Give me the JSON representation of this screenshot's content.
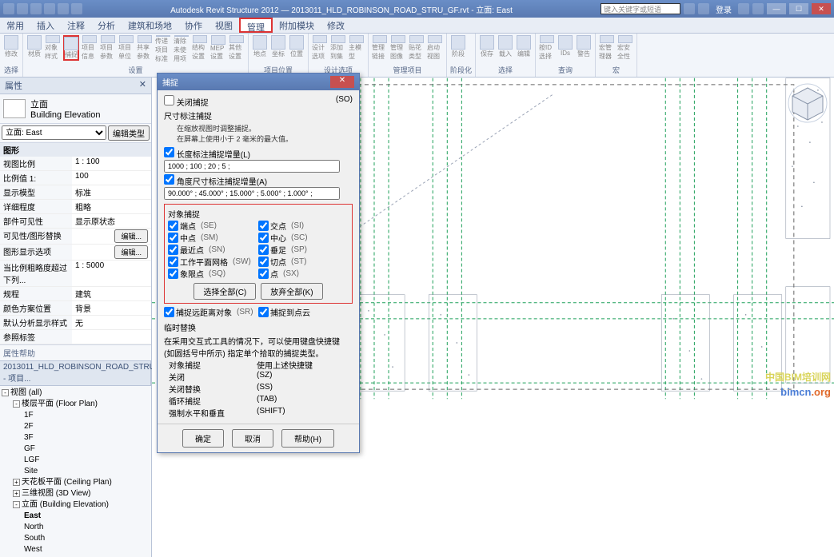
{
  "app": {
    "title": "Autodesk Revit Structure 2012 — 2013011_HLD_ROBINSON_ROAD_STRU_GF.rvt - 立面: East",
    "search_ph": "键入关键字或短语",
    "login": "登录"
  },
  "tabs": [
    "常用",
    "插入",
    "注释",
    "分析",
    "建筑和场地",
    "协作",
    "视图",
    "管理",
    "附加模块",
    "修改"
  ],
  "active_tab": "管理",
  "highlight_tab": "管理",
  "ribbon_groups": [
    {
      "label": "选择",
      "icons": [
        "修改"
      ]
    },
    {
      "label": "设置",
      "icons": [
        "材质",
        "对象样式",
        "捕捉",
        "项目信息",
        "项目参数",
        "项目单位",
        "共享参数",
        "传递项目标准",
        "清除未使用项",
        "结构设置",
        "MEP设置",
        "其他设置"
      ]
    },
    {
      "label": "项目位置",
      "icons": [
        "地点",
        "坐标",
        "位置"
      ]
    },
    {
      "label": "设计选项",
      "icons": [
        "设计选项",
        "添加到集",
        "主模型"
      ]
    },
    {
      "label": "管理项目",
      "icons": [
        "管理链接",
        "管理图像",
        "贴花类型",
        "启动视图"
      ]
    },
    {
      "label": "阶段化",
      "icons": [
        "阶段"
      ]
    },
    {
      "label": "选择",
      "icons": [
        "保存",
        "载入",
        "编辑"
      ]
    },
    {
      "label": "查询",
      "icons": [
        "按ID选择",
        "IDs",
        "警告"
      ]
    },
    {
      "label": "宏",
      "icons": [
        "宏管理器",
        "宏安全性"
      ]
    }
  ],
  "highlight_icon": "捕捉",
  "props": {
    "panel": "属性",
    "family": "立面",
    "type": "Building Elevation",
    "selector": "立面: East",
    "edit_type": "编辑类型",
    "sect": "图形",
    "rows": [
      {
        "k": "视图比例",
        "v": "1 : 100"
      },
      {
        "k": "比例值 1:",
        "v": "100"
      },
      {
        "k": "显示模型",
        "v": "标准"
      },
      {
        "k": "详细程度",
        "v": "粗略"
      },
      {
        "k": "部件可见性",
        "v": "显示原状态"
      },
      {
        "k": "可见性/图形替换",
        "v": "",
        "btn": "编辑..."
      },
      {
        "k": "图形显示选项",
        "v": "",
        "btn": "编辑..."
      },
      {
        "k": "当比例粗略度超过下列...",
        "v": "1 : 5000"
      },
      {
        "k": "规程",
        "v": "建筑"
      },
      {
        "k": "颜色方案位置",
        "v": "背景"
      },
      {
        "k": "默认分析显示样式",
        "v": "无"
      },
      {
        "k": "参照标签",
        "v": ""
      }
    ],
    "help": "属性帮助"
  },
  "browser": {
    "title": "2013011_HLD_ROBINSON_ROAD_STRU_GF.rvt - 项目...",
    "nodes": [
      {
        "l": 1,
        "exp": "-",
        "t": "视图 (all)"
      },
      {
        "l": 2,
        "exp": "-",
        "t": "楼层平面 (Floor Plan)"
      },
      {
        "l": 3,
        "t": "1F"
      },
      {
        "l": 3,
        "t": "2F"
      },
      {
        "l": 3,
        "t": "3F"
      },
      {
        "l": 3,
        "t": "GF"
      },
      {
        "l": 3,
        "t": "LGF"
      },
      {
        "l": 3,
        "t": "Site"
      },
      {
        "l": 2,
        "exp": "+",
        "t": "天花板平面 (Ceiling Plan)"
      },
      {
        "l": 2,
        "exp": "+",
        "t": "三维视图 (3D View)"
      },
      {
        "l": 2,
        "exp": "-",
        "t": "立面 (Building Elevation)"
      },
      {
        "l": 3,
        "t": "East",
        "bold": true
      },
      {
        "l": 3,
        "t": "North"
      },
      {
        "l": 3,
        "t": "South"
      },
      {
        "l": 3,
        "t": "West"
      }
    ]
  },
  "dialog": {
    "title": "捕捉",
    "close_snap": "关闭捕捉",
    "close_snap_hk": "(SO)",
    "dim_title": "尺寸标注捕捉",
    "dim_desc1": "在缩放视图时调整捕捉。",
    "dim_desc2": "在屏幕上使用小于 2 毫米的最大值。",
    "len_chk": "长度标注捕捉增量(L)",
    "len_val": "1000 ; 100 ; 20 ; 5 ;",
    "ang_chk": "角度尺寸标注捕捉增量(A)",
    "ang_val": "90.000° ; 45.000° ; 15.000° ; 5.000° ; 1.000° ;",
    "obj_title": "对象捕捉",
    "checks": [
      {
        "a": "端点",
        "ah": "(SE)",
        "b": "交点",
        "bh": "(SI)"
      },
      {
        "a": "中点",
        "ah": "(SM)",
        "b": "中心",
        "bh": "(SC)"
      },
      {
        "a": "最近点",
        "ah": "(SN)",
        "b": "垂足",
        "bh": "(SP)"
      },
      {
        "a": "工作平面网格",
        "ah": "(SW)",
        "b": "切点",
        "bh": "(ST)"
      },
      {
        "a": "象限点",
        "ah": "(SQ)",
        "b": "点",
        "bh": "(SX)"
      }
    ],
    "sel_all": "选择全部(C)",
    "desel_all": "放弃全部(K)",
    "ext1": "捕捉远距离对象",
    "ext1_hk": "(SR)",
    "ext2": "捕捉到点云",
    "ext2_hk": "",
    "temp_title": "临时替换",
    "temp_desc": "在采用交互式工具的情况下，可以使用键盘快捷键 (如圆括号中所示) 指定单个拾取的捕捉类型。",
    "kv": [
      {
        "k": "对象捕捉",
        "v": "使用上述快捷键"
      },
      {
        "k": "关闭",
        "v": "(SZ)"
      },
      {
        "k": "关闭替换",
        "v": "(SS)"
      },
      {
        "k": "循环捕捉",
        "v": "(TAB)"
      },
      {
        "k": "强制水平和垂直",
        "v": "(SHIFT)"
      }
    ],
    "ok": "确定",
    "cancel": "取消",
    "help": "帮助(H)"
  },
  "watermark": {
    "a": "bimcn",
    "b": ".org",
    "tag": "中国BIM培训网"
  },
  "canvas": {
    "bg": "#ffffff",
    "grid": "#1fa05a",
    "grid_dash": "4,3",
    "struct": "#8892a3",
    "crop": "#666666"
  }
}
